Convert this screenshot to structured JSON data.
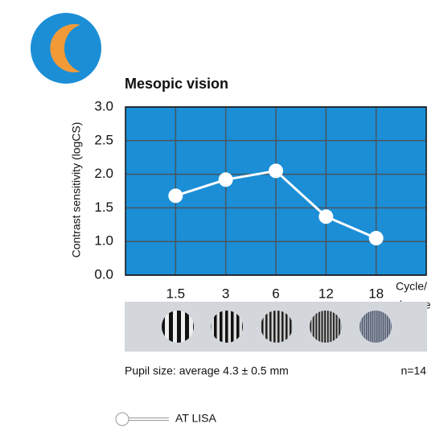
{
  "chart_data": {
    "type": "line",
    "title": "Mesopic vision",
    "ylabel": "Contrast sensitivity (logCS)",
    "xlabel": [
      "Cycle/",
      "degree"
    ],
    "categories": [
      "1.5",
      "3",
      "6",
      "12",
      "18"
    ],
    "series": [
      {
        "name": "AT LISA",
        "color": "#ffffff",
        "values": [
          1.68,
          1.92,
          2.05,
          1.37,
          1.05
        ]
      }
    ],
    "ylim": [
      0,
      3
    ],
    "yticks": [
      {
        "value": 0,
        "label": "0.0"
      },
      {
        "value": 1,
        "label": "1.0"
      },
      {
        "value": 1.5,
        "label": "1.5"
      },
      {
        "value": 2,
        "label": "2.0"
      },
      {
        "value": 2.5,
        "label": "2.5"
      },
      {
        "value": 3,
        "label": "3.0"
      }
    ],
    "grid": true,
    "background": "#1b8ed6",
    "footnote": "Pupil size: average 4.3 ± 0.5 mm",
    "sample": "n=14"
  }
}
